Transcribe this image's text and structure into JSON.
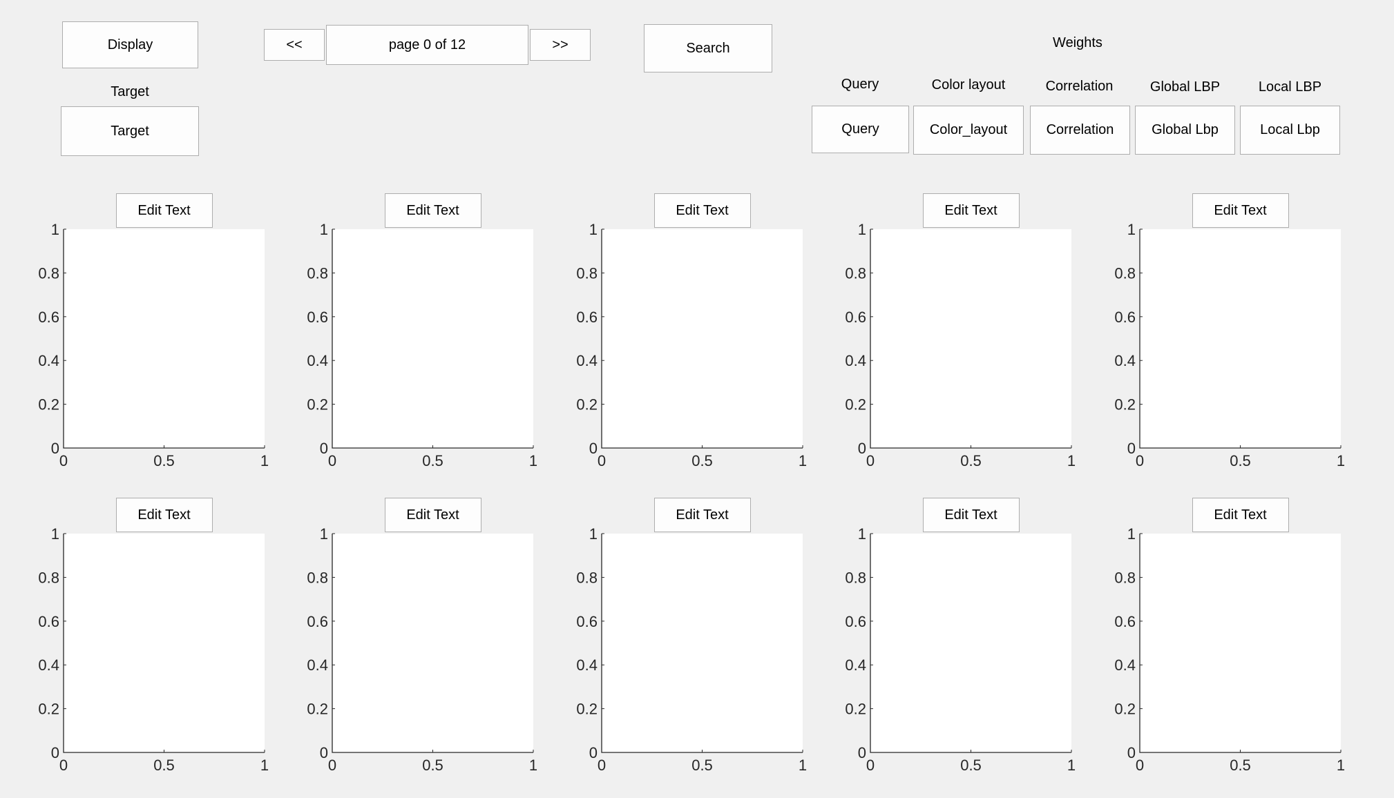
{
  "toolbar": {
    "display_label": "Display",
    "prev_label": "<<",
    "page_indicator": "page 0 of 12",
    "next_label": ">>",
    "search_label": "Search"
  },
  "target": {
    "caption": "Target",
    "field_value": "Target"
  },
  "weights": {
    "title": "Weights",
    "items": [
      {
        "caption": "Query",
        "value": "Query"
      },
      {
        "caption": "Color layout",
        "value": "Color_layout"
      },
      {
        "caption": "Correlation",
        "value": "Correlation"
      },
      {
        "caption": "Global LBP",
        "value": "Global Lbp"
      },
      {
        "caption": "Local LBP",
        "value": "Local Lbp"
      }
    ]
  },
  "results": {
    "edit_text_label": "Edit Text",
    "count": 10
  },
  "chart_data": {
    "type": "scatter",
    "panels": 10,
    "series": [],
    "xlim": [
      0,
      1
    ],
    "ylim": [
      0,
      1
    ],
    "xticks": [
      "0",
      "0.5",
      "1"
    ],
    "yticks": [
      "0",
      "0.2",
      "0.4",
      "0.6",
      "0.8",
      "1"
    ],
    "grid": false
  }
}
